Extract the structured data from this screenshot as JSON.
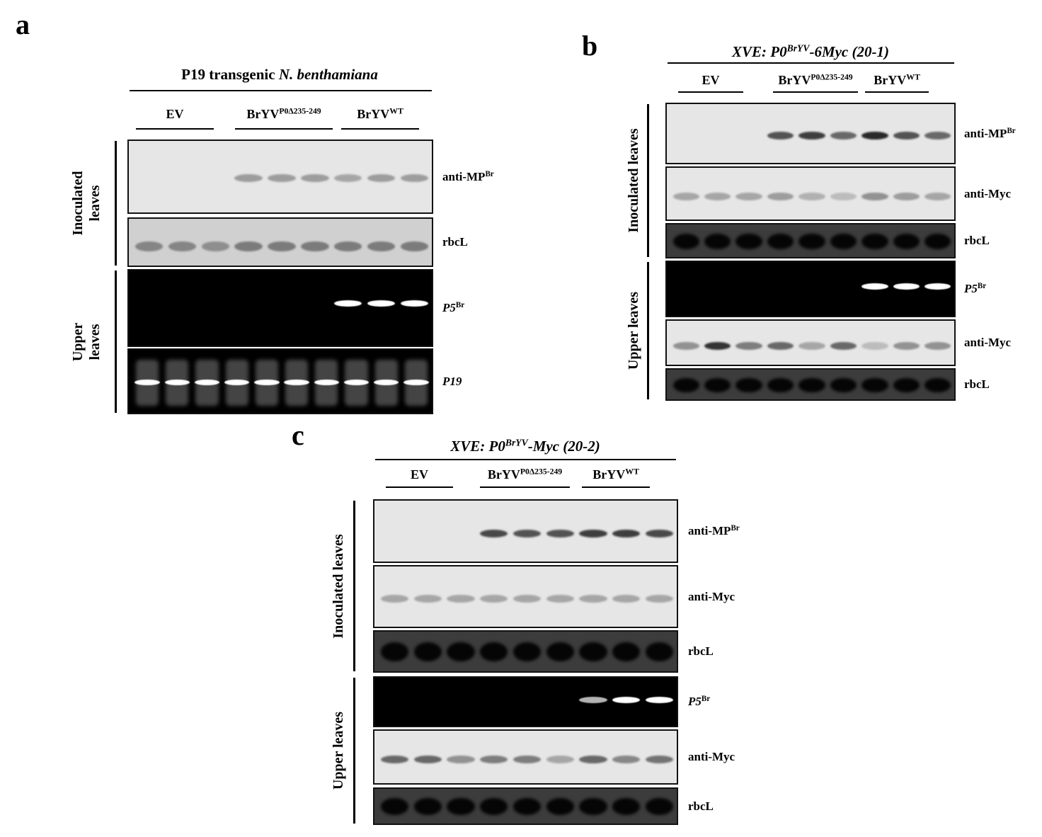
{
  "panels": [
    {
      "letter": "a",
      "title": [
        {
          "text": "P19 transgenic "
        },
        {
          "text": "N. benthamiana",
          "style": "italic"
        }
      ],
      "groups": [
        {
          "text": "EV"
        },
        {
          "text": "BrYV",
          "sup": "P0Δ235-249"
        },
        {
          "text": "BrYV",
          "sup": "WT"
        }
      ],
      "sections": [
        {
          "label": "Inoculated leaves",
          "blots": [
            {
              "text": "anti-MP",
              "sup": "Br"
            },
            {
              "text": "rbcL"
            }
          ]
        },
        {
          "label": "Upper leaves",
          "blots": [
            {
              "text": "P5",
              "sup": "Br",
              "italic": true
            },
            {
              "text": "P19",
              "italic": true
            }
          ]
        }
      ]
    },
    {
      "letter": "b",
      "title": [
        {
          "text": "XVE: P0",
          "style": "italic"
        },
        {
          "text": "BrYV",
          "style": "sup"
        },
        {
          "text": "-6Myc (20-1)",
          "style": "italic"
        }
      ],
      "groups": [
        {
          "text": "EV"
        },
        {
          "text": "BrYV",
          "sup": "P0Δ235-249"
        },
        {
          "text": "BrYV",
          "sup": "WT"
        }
      ],
      "sections": [
        {
          "label": "Inoculated leaves",
          "blots": [
            {
              "text": "anti-MP",
              "sup": "Br"
            },
            {
              "text": "anti-Myc"
            },
            {
              "text": "rbcL"
            }
          ]
        },
        {
          "label": "Upper leaves",
          "blots": [
            {
              "text": "P5",
              "sup": "Br",
              "italic": true
            },
            {
              "text": "anti-Myc"
            },
            {
              "text": "rbcL"
            }
          ]
        }
      ]
    },
    {
      "letter": "c",
      "title": [
        {
          "text": "XVE: P0",
          "style": "italic"
        },
        {
          "text": "BrYV",
          "style": "sup"
        },
        {
          "text": "-Myc (20-2)",
          "style": "italic"
        }
      ],
      "groups": [
        {
          "text": "EV"
        },
        {
          "text": "BrYV",
          "sup": "P0Δ235-249"
        },
        {
          "text": "BrYV",
          "sup": "WT"
        }
      ],
      "sections": [
        {
          "label": "Inoculated leaves",
          "blots": [
            {
              "text": "anti-MP",
              "sup": "Br"
            },
            {
              "text": "anti-Myc"
            },
            {
              "text": "rbcL"
            }
          ]
        },
        {
          "label": "Upper leaves",
          "blots": [
            {
              "text": "P5",
              "sup": "Br",
              "italic": true
            },
            {
              "text": "anti-Myc"
            },
            {
              "text": "rbcL"
            }
          ]
        }
      ]
    }
  ]
}
